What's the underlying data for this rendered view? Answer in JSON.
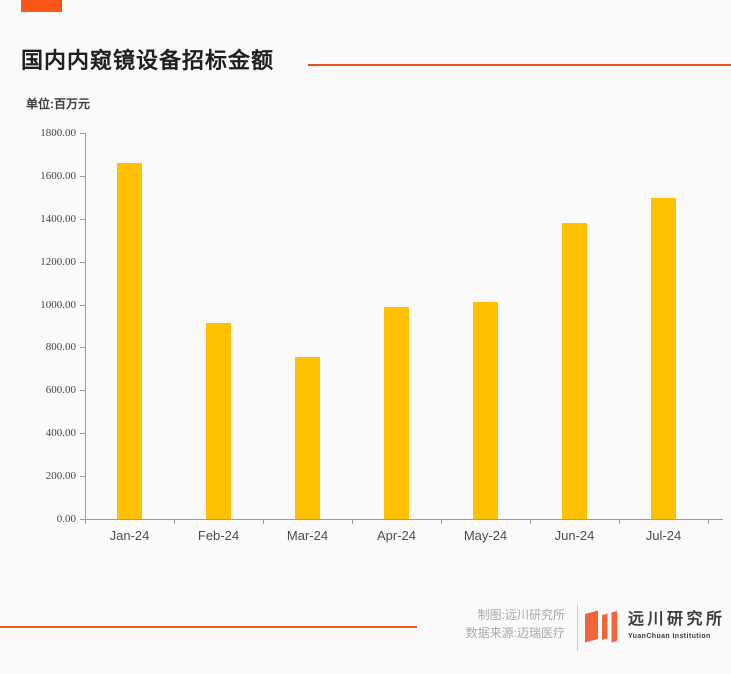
{
  "page": {
    "background_color": "#fafafa"
  },
  "header": {
    "title": "国内内窥镜设备招标金额",
    "unit_label": "单位:百万元",
    "accent_block_color": "#fb5616",
    "title_rule_color": "#e9511c"
  },
  "chart_data": {
    "type": "bar",
    "title": "国内内窥镜设备招标金额",
    "unit": "百万元",
    "categories": [
      "Jan-24",
      "Feb-24",
      "Mar-24",
      "Apr-24",
      "May-24",
      "Jun-24",
      "Jul-24"
    ],
    "values": [
      1660,
      915,
      757,
      990,
      1010,
      1378,
      1498
    ],
    "ylim": [
      0,
      1800
    ],
    "ytick_step": 200,
    "ytick_labels": [
      "0.00",
      "200.00",
      "400.00",
      "600.00",
      "800.00",
      "1000.00",
      "1200.00",
      "1400.00",
      "1600.00",
      "1800.00"
    ],
    "xlabel": "",
    "ylabel": "",
    "bar_color": "#ffc000",
    "axis_color": "#9c9c9c",
    "grid": false,
    "legend": "none"
  },
  "footer": {
    "credit_chart": "制图:远川研究所",
    "credit_source": "数据来源:迈瑞医疗",
    "footer_rule_color": "#f4561e",
    "logo": {
      "name_cn": "远川研究所",
      "name_en": "YuanChuan Institution",
      "mark_color": "#f0653a"
    }
  }
}
